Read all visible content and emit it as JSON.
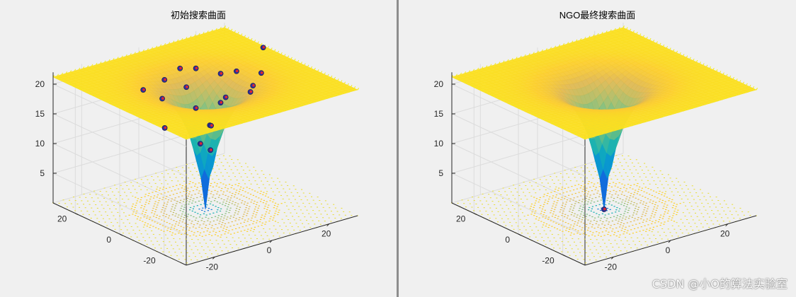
{
  "chart_data": [
    {
      "type": "surface3d",
      "title": "初始搜索曲面",
      "xlabel": "",
      "ylabel": "",
      "zlabel": "",
      "x_range": [
        -30,
        30
      ],
      "y_range": [
        -30,
        30
      ],
      "z_range": [
        0,
        22
      ],
      "x_ticks": [
        "-20",
        "0",
        "20"
      ],
      "y_ticks": [
        "-20",
        "0",
        "20"
      ],
      "z_ticks": [
        "5",
        "10",
        "15",
        "20"
      ],
      "grid": true,
      "colormap": "parula",
      "surface": "Ackley-like funnel: minimum 0 at (0,0), plateau ≈ 21 at the edges",
      "contour_at_base": true,
      "points": [
        {
          "x": -22,
          "y": -10,
          "z": 18.5
        },
        {
          "x": -12,
          "y": 4,
          "z": 19.6
        },
        {
          "x": -8,
          "y": -6,
          "z": 19.2
        },
        {
          "x": -5,
          "y": 12,
          "z": 20.4
        },
        {
          "x": 2,
          "y": 14,
          "z": 21.0
        },
        {
          "x": 6,
          "y": 12,
          "z": 20.8
        },
        {
          "x": 10,
          "y": 6,
          "z": 20.4
        },
        {
          "x": 14,
          "y": 4,
          "z": 20.6
        },
        {
          "x": 18,
          "y": -2,
          "z": 20.8
        },
        {
          "x": -2,
          "y": 6,
          "z": 19.8
        },
        {
          "x": 4,
          "y": -4,
          "z": 19.0
        },
        {
          "x": 8,
          "y": -10,
          "z": 20.4
        },
        {
          "x": -4,
          "y": -12,
          "z": 20.6
        },
        {
          "x": 0,
          "y": -2,
          "z": 14.5
        },
        {
          "x": 2,
          "y": 0,
          "z": 13.8
        },
        {
          "x": 28,
          "y": 10,
          "z": 21.6
        },
        {
          "x": -14,
          "y": 10,
          "z": 20.3
        },
        {
          "x": 12,
          "y": -6,
          "z": 20.2
        },
        {
          "x": -1,
          "y": 1,
          "z": 11.0
        },
        {
          "x": 1,
          "y": -1,
          "z": 10.0
        }
      ]
    },
    {
      "type": "surface3d",
      "title": "NGO最终搜索曲面",
      "xlabel": "",
      "ylabel": "",
      "zlabel": "",
      "x_range": [
        -30,
        30
      ],
      "y_range": [
        -30,
        30
      ],
      "z_range": [
        0,
        22
      ],
      "x_ticks": [
        "-20",
        "0",
        "20"
      ],
      "y_ticks": [
        "-20",
        "0",
        "20"
      ],
      "z_ticks": [
        "5",
        "10",
        "15",
        "20"
      ],
      "grid": true,
      "colormap": "parula",
      "surface": "Ackley-like funnel: minimum 0 at (0,0), plateau ≈ 21 at the edges",
      "contour_at_base": true,
      "points": [
        {
          "x": 0,
          "y": 0,
          "z": 0
        }
      ]
    }
  ],
  "watermark": "CSDN @小O的算法实验室"
}
